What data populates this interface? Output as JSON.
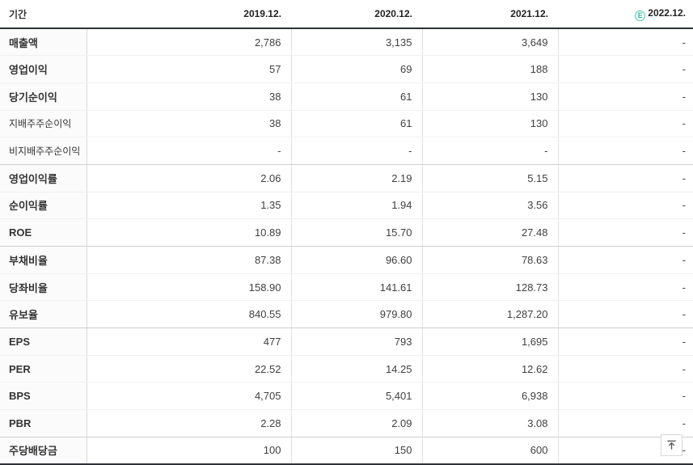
{
  "table": {
    "period_label": "기간",
    "columns": [
      "2019.12.",
      "2020.12.",
      "2021.12.",
      "2022.12."
    ],
    "estimate_icon": "E",
    "estimate_color": "#2eb89f",
    "header_border_color": "#2e3138",
    "rows": [
      {
        "label": "매출액",
        "values": [
          "2,786",
          "3,135",
          "3,649",
          "-"
        ]
      },
      {
        "label": "영업이익",
        "values": [
          "57",
          "69",
          "188",
          "-"
        ]
      },
      {
        "label": "당기순이익",
        "values": [
          "38",
          "61",
          "130",
          "-"
        ]
      },
      {
        "label": "지배주주순이익",
        "values": [
          "38",
          "61",
          "130",
          "-"
        ],
        "small": true
      },
      {
        "label": "비지배주주순이익",
        "values": [
          "-",
          "-",
          "-",
          "-"
        ],
        "small": true,
        "group_end": true
      },
      {
        "label": "영업이익률",
        "values": [
          "2.06",
          "2.19",
          "5.15",
          "-"
        ]
      },
      {
        "label": "순이익률",
        "values": [
          "1.35",
          "1.94",
          "3.56",
          "-"
        ]
      },
      {
        "label": "ROE",
        "values": [
          "10.89",
          "15.70",
          "27.48",
          "-"
        ],
        "group_end": true
      },
      {
        "label": "부채비율",
        "values": [
          "87.38",
          "96.60",
          "78.63",
          "-"
        ]
      },
      {
        "label": "당좌비율",
        "values": [
          "158.90",
          "141.61",
          "128.73",
          "-"
        ]
      },
      {
        "label": "유보율",
        "values": [
          "840.55",
          "979.80",
          "1,287.20",
          "-"
        ],
        "group_end": true
      },
      {
        "label": "EPS",
        "values": [
          "477",
          "793",
          "1,695",
          "-"
        ]
      },
      {
        "label": "PER",
        "values": [
          "22.52",
          "14.25",
          "12.62",
          "-"
        ]
      },
      {
        "label": "BPS",
        "values": [
          "4,705",
          "5,401",
          "6,938",
          "-"
        ]
      },
      {
        "label": "PBR",
        "values": [
          "2.28",
          "2.09",
          "3.08",
          "-"
        ],
        "group_end": true
      },
      {
        "label": "주당배당금",
        "values": [
          "100",
          "150",
          "600",
          "-"
        ]
      }
    ]
  },
  "scroll_top_button": {
    "tooltip": "맨위로"
  }
}
